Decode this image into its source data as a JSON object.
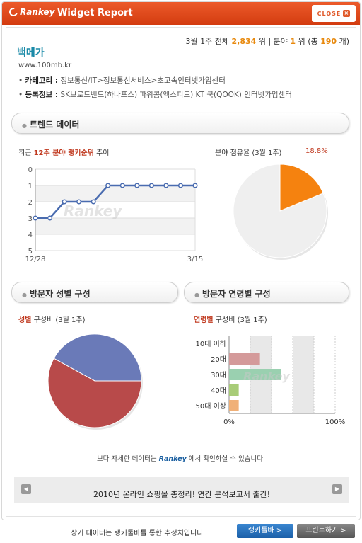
{
  "header": {
    "logo_text": "Rankey",
    "title": "Widget Report",
    "close_label": "CLOSE",
    "close_icon": "close-icon"
  },
  "rank_summary": {
    "period": "3월 1주",
    "overall_label": "전체",
    "overall_rank": "2,834",
    "overall_unit": "위",
    "divider": "|",
    "category_label": "분야",
    "category_rank": "1",
    "category_unit": "위",
    "total_prefix": "(총",
    "total_count": "190",
    "total_suffix": "개)"
  },
  "site": {
    "name": "백메가",
    "url": "www.100mb.kr",
    "category_label": "카테고리 :",
    "category_value": "정보통신/IT>정보통신서비스>초고속인터넷가입센터",
    "registration_label": "등록정보 :",
    "registration_value": "SK브로드밴드(하나포스) 파워콤(엑스피드) KT 쿡(QOOK) 인터넷가입센터"
  },
  "sections": {
    "trend": "트렌드 데이터",
    "gender": "방문자 성별 구성",
    "age": "방문자 연령별 구성"
  },
  "trend_chart": {
    "caption_pre": "최근",
    "caption_red": "12주 분야 랭키순위",
    "caption_post": "추이",
    "watermark": "Rankey"
  },
  "share_chart": {
    "caption": "분야 점유율 (3월 1주)",
    "value_text": "18.8%"
  },
  "gender_chart": {
    "caption_red": "성별",
    "caption_post": "구성비 (3월 1주)"
  },
  "age_chart": {
    "caption_red": "연령별",
    "caption_post": "구성비 (3월 1주)",
    "watermark": "Rankey"
  },
  "chart_data": [
    {
      "type": "line",
      "title": "최근 12주 분야 랭키순위 추이",
      "x": [
        "12/28",
        "",
        "",
        "",
        "",
        "",
        "",
        "",
        "",
        "",
        "",
        "3/15"
      ],
      "y": [
        3,
        3,
        2,
        2,
        2,
        1,
        1,
        1,
        1,
        1,
        1,
        1
      ],
      "yticks": [
        0,
        1,
        2,
        3,
        4,
        5
      ],
      "ylim": [
        0,
        5
      ],
      "y_inverted": true,
      "grid": true,
      "series_color": "#4a6cb0"
    },
    {
      "type": "pie",
      "title": "분야 점유율 (3월 1주)",
      "slices": [
        {
          "label": "18.8%",
          "value": 18.8,
          "color": "#f5820f"
        },
        {
          "label": "",
          "value": 81.2,
          "color": "#efefef"
        }
      ]
    },
    {
      "type": "pie",
      "title": "성별 구성비 (3월 1주)",
      "slices": [
        {
          "label": "",
          "value": 42,
          "color": "#6a7ab8"
        },
        {
          "label": "",
          "value": 58,
          "color": "#b84a4a"
        }
      ]
    },
    {
      "type": "bar",
      "orientation": "horizontal",
      "title": "연령별 구성비 (3월 1주)",
      "categories": [
        "10대 이하",
        "20대",
        "30대",
        "40대",
        "50대 이상"
      ],
      "values": [
        0,
        16,
        27,
        5,
        5
      ],
      "colors": [
        "#cccccc",
        "#d49a9a",
        "#9ad0b0",
        "#a8cc78",
        "#f0b078"
      ],
      "xticks": [
        "0%",
        "100%"
      ],
      "xlim": [
        0,
        55
      ]
    }
  ],
  "footer": {
    "more_pre": "보다 자세한 데이터는",
    "brand": "Rankey",
    "more_post": "에서 확인하실 수 있습니다.",
    "banner_text": "2010년 온라인 쇼핑몰 총정리! 연간 분석보고서 출간!",
    "note": "상기 데이터는 랭키툴바를 통한 추정치입니다",
    "toolbar_btn": "랭키툴바 >",
    "print_btn": "프린트하기 >"
  }
}
